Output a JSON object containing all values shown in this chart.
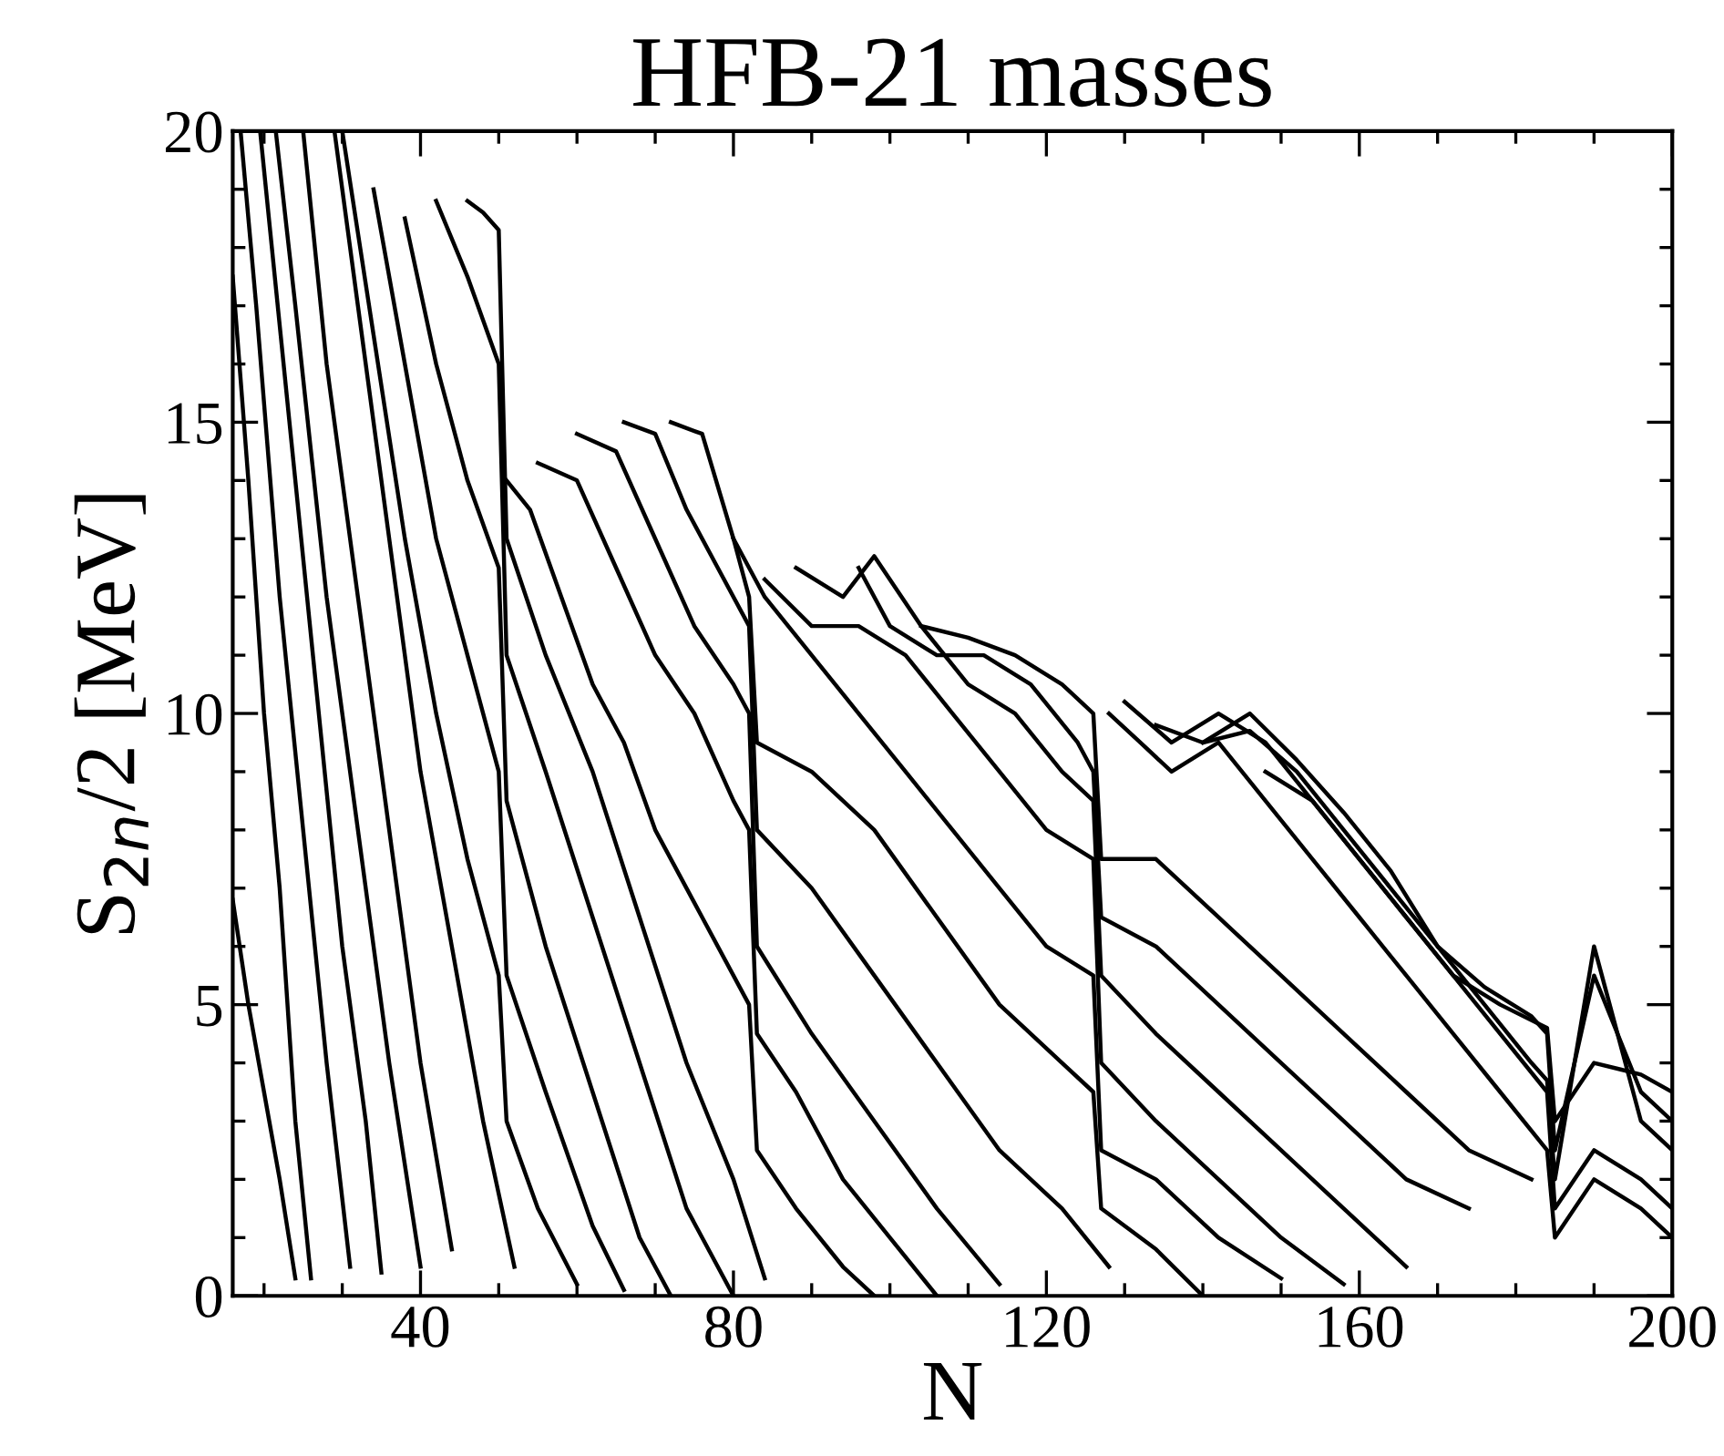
{
  "chart_data": {
    "type": "line",
    "title": "HFB-21 masses",
    "xlabel": "N",
    "ylabel": "S$_{2n}$/2 [MeV]",
    "xlim": [
      16,
      200
    ],
    "xticks": [
      40,
      80,
      120,
      160,
      200
    ],
    "ylim": [
      0,
      20
    ],
    "yticks": [
      0,
      5,
      10,
      15,
      20
    ],
    "grid": false,
    "marker": "none",
    "line_style": "solid",
    "series": [
      {
        "color": "#000000",
        "x": [
          16,
          18,
          20,
          22,
          24
        ],
        "values": [
          6.8,
          5,
          3.5,
          2,
          0.3
        ]
      },
      {
        "color": "#000000",
        "x": [
          16,
          18,
          20,
          22,
          24,
          26
        ],
        "values": [
          17.5,
          14,
          10,
          7,
          3,
          0.3
        ]
      },
      {
        "color": "#000000",
        "x": [
          17,
          19,
          22,
          25,
          28,
          31
        ],
        "values": [
          20,
          17,
          12,
          8,
          4,
          0.5
        ]
      },
      {
        "color": "#000000",
        "x": [
          19.5,
          21,
          24,
          27,
          30,
          33,
          35
        ],
        "values": [
          20,
          18,
          14,
          10,
          6,
          3,
          0.4
        ]
      },
      {
        "color": "#000000",
        "x": [
          21.5,
          24,
          28,
          32,
          36,
          40
        ],
        "values": [
          20,
          17,
          12,
          8,
          4,
          0.5
        ]
      },
      {
        "color": "#000000",
        "x": [
          25,
          28,
          32,
          36,
          40,
          44
        ],
        "values": [
          20,
          16,
          12,
          8,
          4,
          0.8
        ]
      },
      {
        "color": "#000000",
        "x": [
          29,
          32,
          36,
          40,
          44,
          48,
          52
        ],
        "values": [
          20,
          17,
          13,
          9,
          6,
          3,
          0.5
        ]
      },
      {
        "color": "#000000",
        "x": [
          30,
          34,
          38,
          42,
          46,
          50,
          51,
          55,
          60
        ],
        "values": [
          20,
          16.5,
          13,
          10,
          7.5,
          5.5,
          3,
          1.5,
          0.2
        ]
      },
      {
        "color": "#000000",
        "x": [
          34,
          38,
          42,
          46,
          50,
          51,
          56,
          62,
          66
        ],
        "values": [
          19,
          16,
          13,
          11,
          9,
          5.5,
          3.5,
          1.2,
          0.1
        ]
      },
      {
        "color": "#000000",
        "x": [
          38,
          42,
          46,
          50,
          51,
          56,
          62,
          68,
          72
        ],
        "values": [
          18.5,
          16,
          14,
          12.5,
          8.5,
          6,
          3.5,
          1,
          0
        ]
      },
      {
        "color": "#000000",
        "x": [
          42,
          46,
          50,
          51,
          56,
          62,
          68,
          74,
          80
        ],
        "values": [
          18.8,
          17.5,
          16,
          11,
          9,
          6.5,
          4,
          1.5,
          0
        ]
      },
      {
        "color": "#000000",
        "x": [
          46,
          48,
          50,
          51,
          56,
          62,
          68,
          74,
          80,
          84
        ],
        "values": [
          18.8,
          18.6,
          18.3,
          13,
          11,
          9,
          6.5,
          4,
          2,
          0.3
        ]
      },
      {
        "color": "#000000",
        "x": [
          51,
          54,
          58,
          62,
          66,
          70,
          76,
          82,
          83,
          88,
          94,
          98
        ],
        "values": [
          14,
          13.5,
          12,
          10.5,
          9.5,
          8,
          6.5,
          5,
          2.5,
          1.5,
          0.5,
          0
        ]
      },
      {
        "color": "#000000",
        "x": [
          55,
          60,
          65,
          70,
          75,
          80,
          82,
          83,
          88,
          94,
          100,
          106
        ],
        "values": [
          14.3,
          14,
          12.5,
          11,
          10,
          8.5,
          8,
          4.5,
          3.5,
          2,
          1,
          0
        ]
      },
      {
        "color": "#000000",
        "x": [
          60,
          65,
          70,
          75,
          80,
          82,
          83,
          90,
          98,
          106,
          114
        ],
        "values": [
          14.8,
          14.5,
          13,
          11.5,
          10.5,
          10,
          6,
          4.5,
          3,
          1.5,
          0.2
        ]
      },
      {
        "color": "#000000",
        "x": [
          66,
          70,
          74,
          78,
          82,
          83,
          90,
          98,
          106,
          114,
          122,
          128
        ],
        "values": [
          15,
          14.8,
          13.5,
          12.5,
          11.5,
          8,
          7,
          5.5,
          4,
          2.5,
          1.5,
          0.5
        ]
      },
      {
        "color": "#000000",
        "x": [
          72,
          76,
          80,
          82,
          83,
          90,
          98,
          106,
          114,
          122,
          126,
          127,
          134,
          140
        ],
        "values": [
          15,
          14.8,
          13,
          12,
          9.5,
          9,
          8,
          6.5,
          5,
          4,
          3.5,
          1.5,
          0.8,
          0
        ]
      },
      {
        "color": "#000000",
        "x": [
          80,
          84,
          90,
          96,
          102,
          108,
          114,
          120,
          126,
          127,
          134,
          142,
          150
        ],
        "values": [
          13,
          12,
          11,
          10,
          9,
          8,
          7,
          6,
          5.5,
          2.5,
          2,
          1,
          0.3
        ]
      },
      {
        "color": "#000000",
        "x": [
          84,
          90,
          96,
          102,
          108,
          114,
          120,
          126,
          127,
          134,
          142,
          150,
          158
        ],
        "values": [
          12.3,
          11.5,
          11.5,
          11,
          10,
          9,
          8,
          7.5,
          4,
          3,
          2,
          1,
          0.2
        ]
      },
      {
        "color": "#000000",
        "x": [
          88,
          94,
          98,
          104,
          110,
          116,
          122,
          126,
          127,
          134,
          142,
          150,
          158,
          166
        ],
        "values": [
          12.5,
          12,
          12.7,
          11.5,
          10.5,
          10,
          9,
          8.5,
          5.5,
          4.5,
          3.5,
          2.5,
          1.5,
          0.5
        ]
      },
      {
        "color": "#000000",
        "x": [
          96,
          100,
          106,
          112,
          118,
          124,
          126,
          127,
          134,
          142,
          150,
          158,
          166,
          174
        ],
        "values": [
          12.5,
          11.5,
          11,
          11,
          10.5,
          9.5,
          9,
          6.5,
          6,
          5,
          4,
          3,
          2,
          1.5
        ]
      },
      {
        "color": "#000000",
        "x": [
          104,
          110,
          116,
          122,
          126,
          127,
          134,
          142,
          150,
          158,
          166,
          174,
          182
        ],
        "values": [
          11.5,
          11.3,
          11,
          10.5,
          10,
          7.5,
          7.5,
          6.5,
          5.5,
          4.5,
          3.5,
          2.5,
          2
        ]
      },
      {
        "color": "#000000",
        "x": [
          128,
          132,
          136,
          142,
          148,
          154,
          160,
          166,
          172,
          178,
          184,
          185,
          190,
          196,
          200
        ],
        "values": [
          10,
          9.5,
          9,
          9.5,
          8.5,
          7.5,
          6.5,
          5.5,
          4.5,
          3.5,
          2.5,
          1,
          2,
          1.5,
          1
        ]
      },
      {
        "color": "#000000",
        "x": [
          130,
          136,
          142,
          148,
          154,
          160,
          166,
          172,
          178,
          184,
          185,
          190,
          196,
          200
        ],
        "values": [
          10.2,
          9.5,
          10,
          9.5,
          8.5,
          7.5,
          6.5,
          5.5,
          4.5,
          3.5,
          1.5,
          2.5,
          2,
          1.5
        ]
      },
      {
        "color": "#000000",
        "x": [
          134,
          140,
          146,
          152,
          158,
          164,
          170,
          176,
          182,
          184,
          185,
          190,
          196,
          200
        ],
        "values": [
          9.8,
          9.5,
          9.7,
          9,
          8,
          7,
          6,
          5,
          4,
          3.7,
          2,
          6,
          3,
          2.5
        ]
      },
      {
        "color": "#000000",
        "x": [
          140,
          146,
          152,
          158,
          164,
          170,
          176,
          182,
          184,
          185,
          190,
          196,
          200
        ],
        "values": [
          9.5,
          10,
          9.2,
          8.3,
          7.3,
          6,
          5.3,
          4.8,
          4.5,
          2.5,
          5.5,
          3.5,
          3
        ]
      },
      {
        "color": "#000000",
        "x": [
          148,
          154,
          160,
          166,
          172,
          178,
          184,
          185,
          190,
          196,
          200
        ],
        "values": [
          9,
          8.5,
          7.5,
          6.5,
          5.5,
          5,
          4.6,
          3,
          4,
          3.8,
          3.5
        ]
      }
    ]
  }
}
